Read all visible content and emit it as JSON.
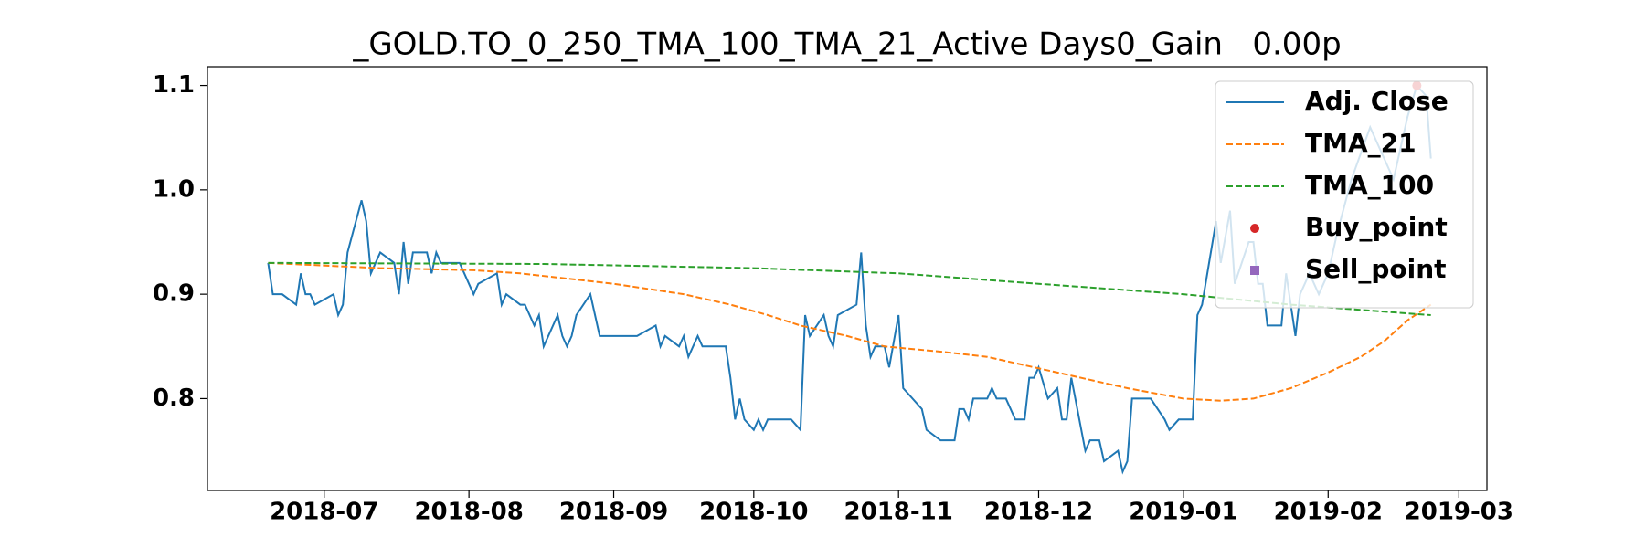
{
  "chart_data": {
    "type": "line",
    "title": "_GOLD.TO_0_250_TMA_100_TMA_21_Active Days0_Gain   0.00p",
    "xlim": [
      17688,
      17962
    ],
    "xticks": [
      {
        "value": 17713,
        "label": "2018-07"
      },
      {
        "value": 17744,
        "label": "2018-08"
      },
      {
        "value": 17775,
        "label": "2018-09"
      },
      {
        "value": 17805,
        "label": "2018-10"
      },
      {
        "value": 17836,
        "label": "2018-11"
      },
      {
        "value": 17866,
        "label": "2018-12"
      },
      {
        "value": 17897,
        "label": "2019-01"
      },
      {
        "value": 17928,
        "label": "2019-02"
      },
      {
        "value": 17956,
        "label": "2019-03"
      }
    ],
    "ylim": [
      0.712,
      1.118
    ],
    "yticks": [
      {
        "value": 0.8,
        "label": "0.8"
      },
      {
        "value": 0.9,
        "label": "0.9"
      },
      {
        "value": 1.0,
        "label": "1.0"
      },
      {
        "value": 1.1,
        "label": "1.1"
      }
    ],
    "legend": "upper right",
    "series": [
      {
        "name": "Adj. Close",
        "color": "#1f77b4",
        "linestyle": "solid",
        "x": [
          17701,
          17702,
          17704,
          17707,
          17708,
          17709,
          17710,
          17711,
          17715,
          17716,
          17717,
          17718,
          17721,
          17722,
          17723,
          17725,
          17728,
          17729,
          17730,
          17731,
          17732,
          17735,
          17736,
          17737,
          17738,
          17742,
          17745,
          17746,
          17750,
          17751,
          17752,
          17755,
          17756,
          17758,
          17759,
          17760,
          17763,
          17764,
          17765,
          17766,
          17767,
          17770,
          17772,
          17774,
          17780,
          17784,
          17785,
          17786,
          17789,
          17790,
          17791,
          17793,
          17794,
          17799,
          17800,
          17801,
          17802,
          17803,
          17805,
          17806,
          17807,
          17808,
          17813,
          17815,
          17816,
          17817,
          17820,
          17821,
          17822,
          17823,
          17827,
          17828,
          17829,
          17830,
          17831,
          17833,
          17834,
          17836,
          17837,
          17841,
          17842,
          17845,
          17848,
          17849,
          17850,
          17851,
          17852,
          17855,
          17856,
          17857,
          17859,
          17861,
          17863,
          17864,
          17865,
          17866,
          17868,
          17870,
          17871,
          17872,
          17873,
          17876,
          17877,
          17879,
          17880,
          17883,
          17884,
          17885,
          17886,
          17890,
          17893,
          17894,
          17896,
          17899,
          17900,
          17901,
          17904,
          17905,
          17907,
          17908,
          17911,
          17912,
          17913,
          17914,
          17915,
          17918,
          17919,
          17921,
          17922,
          17924,
          17926,
          17928,
          17930,
          17933,
          17937,
          17939,
          17942,
          17945,
          17947,
          17949,
          17950
        ],
        "values": [
          0.93,
          0.9,
          0.9,
          0.89,
          0.92,
          0.9,
          0.9,
          0.89,
          0.9,
          0.88,
          0.89,
          0.94,
          0.99,
          0.97,
          0.92,
          0.94,
          0.93,
          0.9,
          0.95,
          0.91,
          0.94,
          0.94,
          0.92,
          0.94,
          0.93,
          0.93,
          0.9,
          0.91,
          0.92,
          0.89,
          0.9,
          0.89,
          0.89,
          0.87,
          0.88,
          0.85,
          0.88,
          0.86,
          0.85,
          0.86,
          0.88,
          0.9,
          0.86,
          0.86,
          0.86,
          0.87,
          0.85,
          0.86,
          0.85,
          0.86,
          0.84,
          0.86,
          0.85,
          0.85,
          0.82,
          0.78,
          0.8,
          0.78,
          0.77,
          0.78,
          0.77,
          0.78,
          0.78,
          0.77,
          0.88,
          0.86,
          0.88,
          0.86,
          0.85,
          0.88,
          0.89,
          0.94,
          0.87,
          0.84,
          0.85,
          0.85,
          0.83,
          0.88,
          0.81,
          0.79,
          0.77,
          0.76,
          0.76,
          0.79,
          0.79,
          0.78,
          0.8,
          0.8,
          0.81,
          0.8,
          0.8,
          0.78,
          0.78,
          0.82,
          0.82,
          0.83,
          0.8,
          0.81,
          0.78,
          0.78,
          0.82,
          0.75,
          0.76,
          0.76,
          0.74,
          0.75,
          0.73,
          0.74,
          0.8,
          0.8,
          0.78,
          0.77,
          0.78,
          0.78,
          0.88,
          0.89,
          0.97,
          0.93,
          0.98,
          0.91,
          0.95,
          0.95,
          0.91,
          0.91,
          0.87,
          0.87,
          0.92,
          0.86,
          0.9,
          0.92,
          0.9,
          0.92,
          0.96,
          1.01,
          1.06,
          1.04,
          1.01,
          1.07,
          1.1,
          1.09,
          1.03
        ]
      },
      {
        "name": "TMA_21",
        "color": "#ff7f0e",
        "linestyle": "dashed",
        "x": [
          17701,
          17725,
          17745,
          17755,
          17775,
          17790,
          17800,
          17808,
          17815,
          17825,
          17833,
          17845,
          17855,
          17865,
          17875,
          17885,
          17897,
          17905,
          17912,
          17920,
          17928,
          17935,
          17940,
          17945,
          17950
        ],
        "values": [
          0.93,
          0.925,
          0.923,
          0.92,
          0.91,
          0.9,
          0.89,
          0.88,
          0.87,
          0.86,
          0.85,
          0.845,
          0.84,
          0.83,
          0.82,
          0.81,
          0.8,
          0.798,
          0.8,
          0.81,
          0.825,
          0.84,
          0.855,
          0.875,
          0.89
        ]
      },
      {
        "name": "TMA_100",
        "color": "#2ca02c",
        "linestyle": "dashed",
        "x": [
          17701,
          17760,
          17805,
          17836,
          17866,
          17897,
          17920,
          17950
        ],
        "values": [
          0.93,
          0.929,
          0.925,
          0.92,
          0.91,
          0.9,
          0.89,
          0.88
        ]
      },
      {
        "name": "Buy_point",
        "color": "#d62728",
        "linestyle": "none",
        "marker": "o",
        "x": [
          17947
        ],
        "values": [
          1.1
        ]
      },
      {
        "name": "Sell_point",
        "color": "#9467bd",
        "linestyle": "none",
        "marker": "s",
        "x": [],
        "values": []
      }
    ]
  }
}
